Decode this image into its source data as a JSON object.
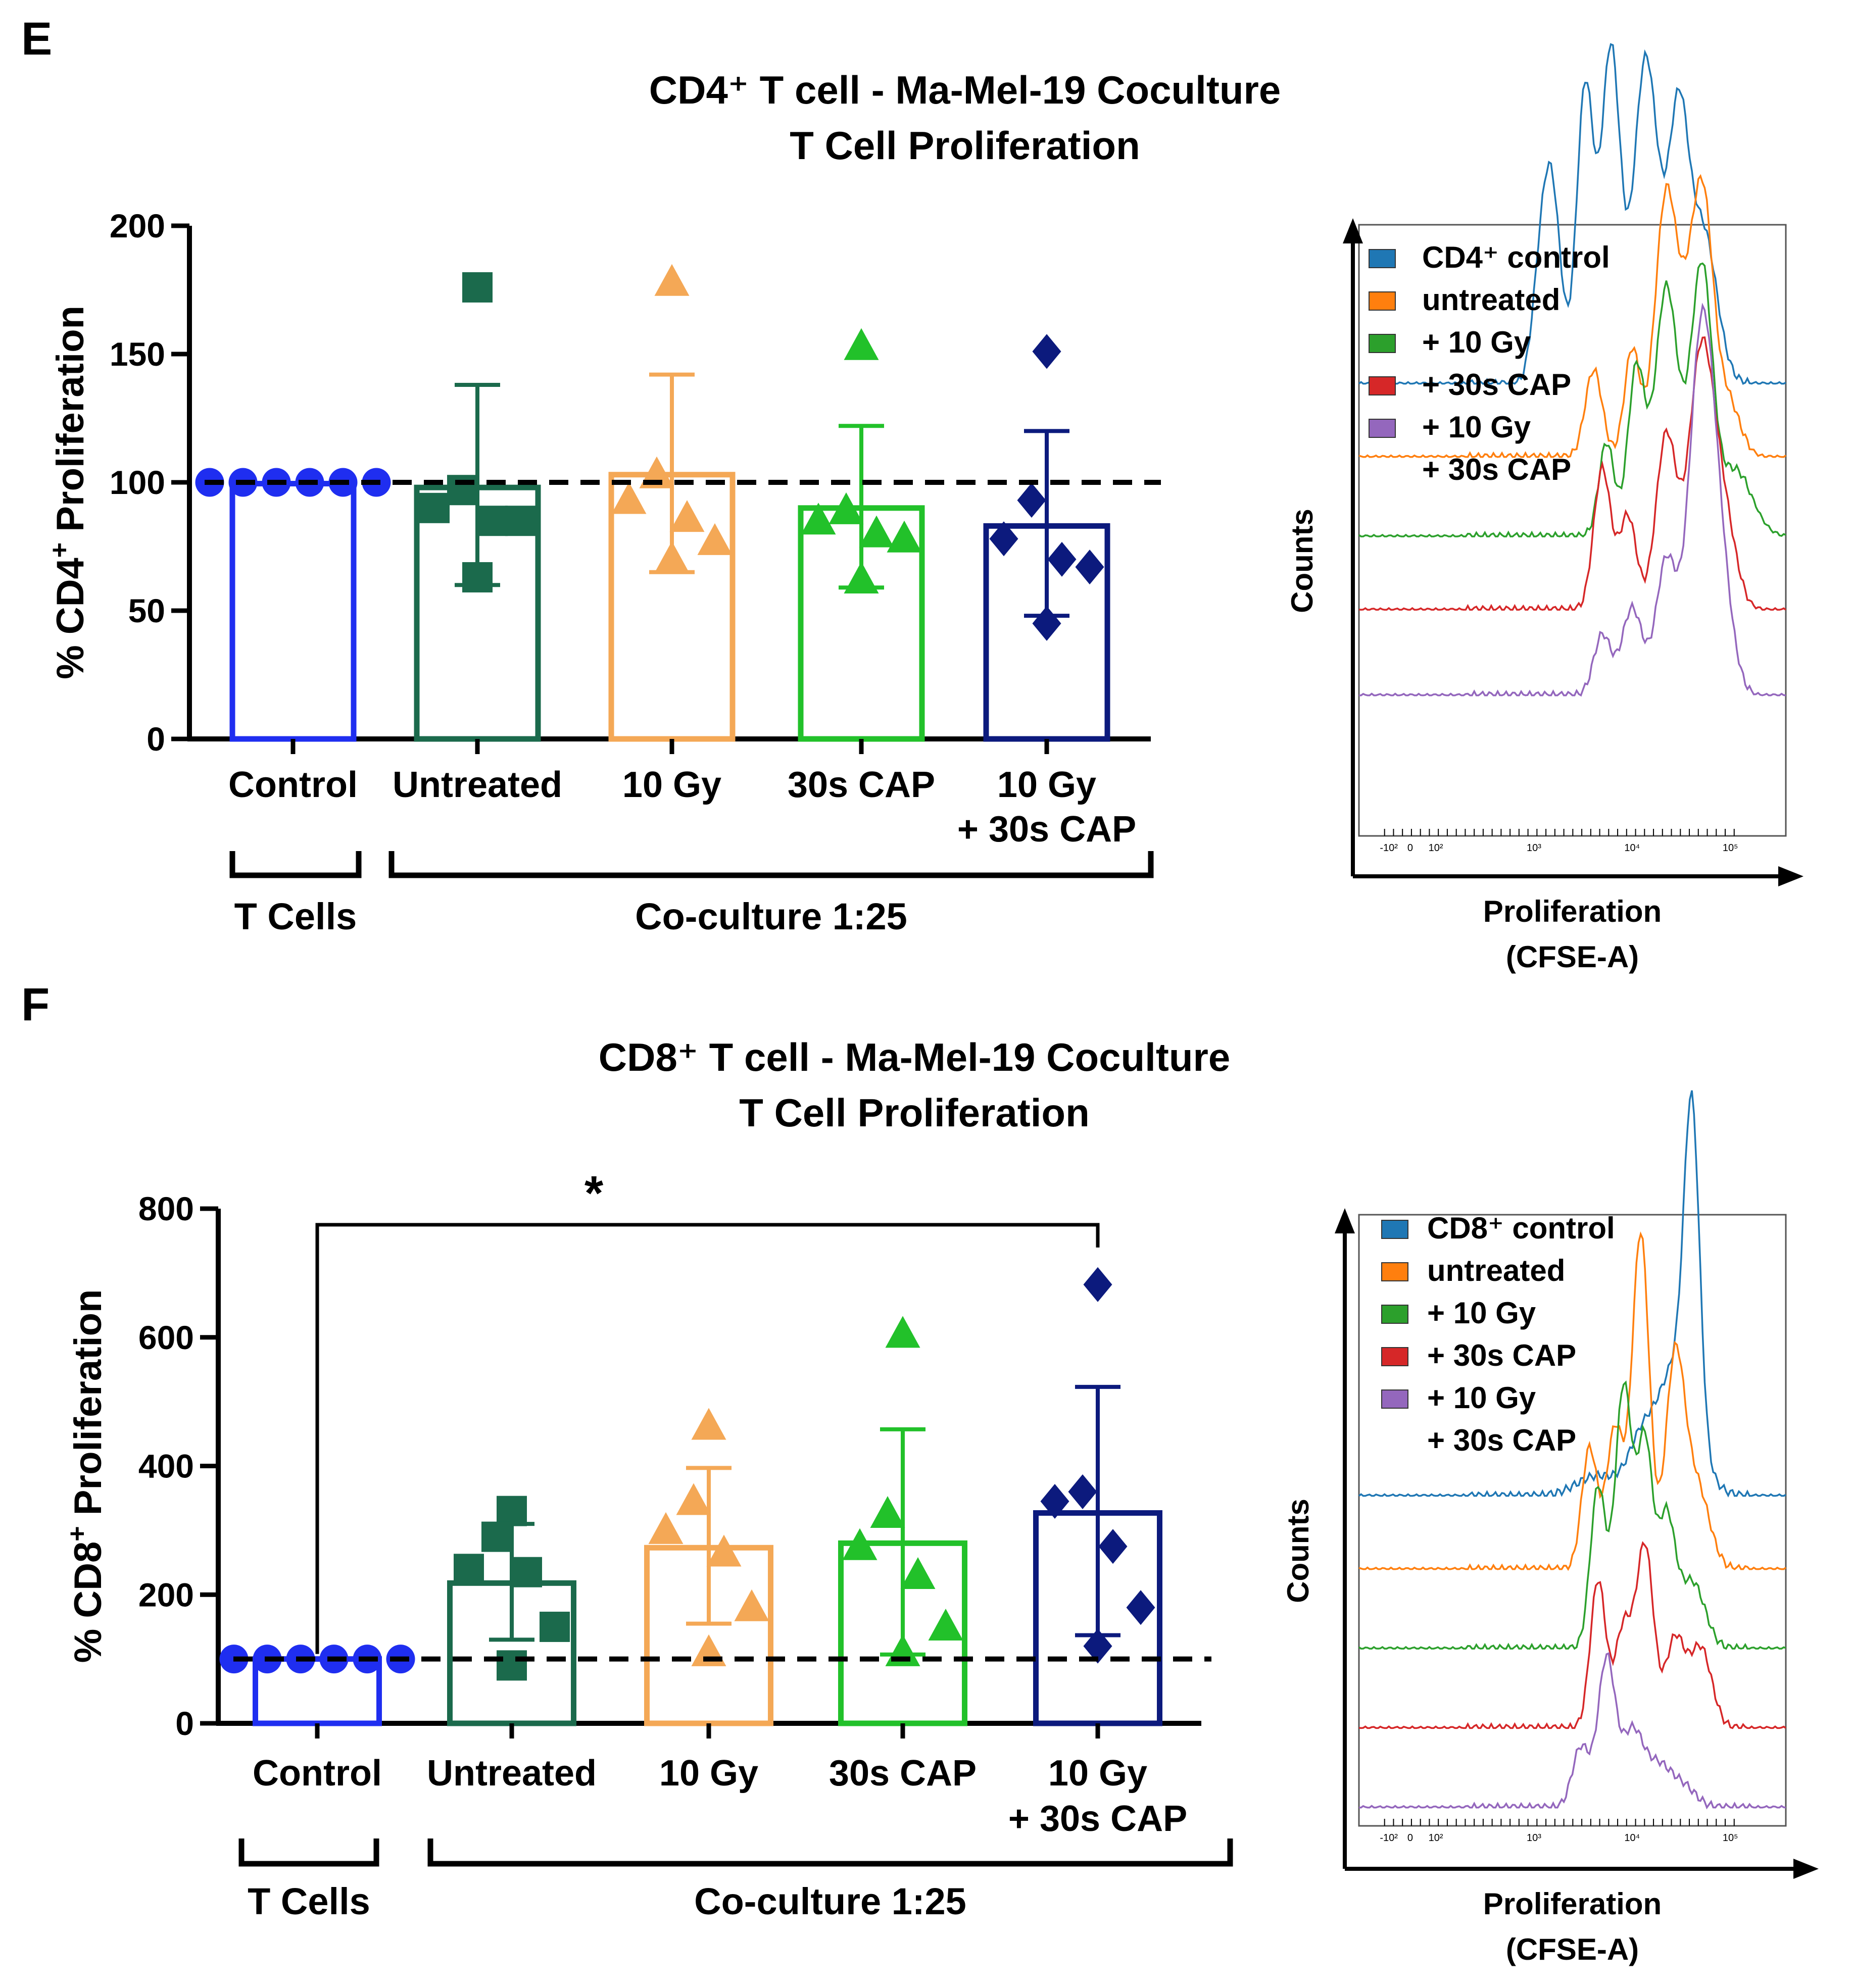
{
  "panels": [
    {
      "letter": "E",
      "title": [
        "CD4⁺ T cell - Ma-Mel-19 Coculture",
        "T Cell Proliferation"
      ],
      "bar": {
        "ylabel_prefix": "% CD4",
        "ylabel_sup": "+",
        "ylabel_suffix": " Proliferation",
        "ylim": [
          0,
          200
        ],
        "yticks": [
          "0",
          "50",
          "100",
          "150",
          "200"
        ],
        "baseline": 100,
        "categories": [
          {
            "lines": [
              "Control"
            ],
            "mean": 99.5,
            "err_low": 99.5,
            "err_high": 99.5,
            "color": "#1f2ef0",
            "marker": "circle",
            "points": [
              100,
              100,
              100,
              100,
              100,
              100
            ]
          },
          {
            "lines": [
              "Untreated"
            ],
            "mean": 98,
            "err_low": 60,
            "err_high": 138,
            "color": "#1b6a4c",
            "marker": "square",
            "points": [
              176,
              97,
              90,
              85,
              85,
              63
            ]
          },
          {
            "lines": [
              "10 Gy"
            ],
            "mean": 103,
            "err_low": 65,
            "err_high": 142,
            "color": "#f4a856",
            "marker": "triangle",
            "points": [
              178,
              103,
              93,
              86,
              77,
              70
            ]
          },
          {
            "lines": [
              "30s CAP"
            ],
            "mean": 90,
            "err_low": 59,
            "err_high": 122,
            "color": "#22c12a",
            "marker": "triangle",
            "points": [
              153,
              89,
              85,
              80,
              78,
              62
            ]
          },
          {
            "lines": [
              "10 Gy",
              "+ 30s CAP"
            ],
            "mean": 83,
            "err_low": 48,
            "err_high": 120,
            "color": "#0c1a7d",
            "marker": "diamond",
            "points": [
              151,
              93,
              78,
              70,
              67,
              45
            ]
          }
        ],
        "groups": [
          {
            "label": "T Cells"
          },
          {
            "label": "Co-culture 1:25"
          }
        ],
        "significance": null
      },
      "flow": {
        "ylabel": "Counts",
        "xlabel": [
          "Proliferation",
          "(CFSE-A)"
        ],
        "xticks": [
          "-10²",
          "0",
          "10²",
          "10³",
          "10⁴",
          "10⁵"
        ],
        "legend": [
          {
            "label": "CD4⁺ control",
            "color": "#1f77b4"
          },
          {
            "label": "untreated",
            "color": "#ff7f0e"
          },
          {
            "label": "+ 10 Gy",
            "color": "#2ca02c"
          },
          {
            "label": "+ 30s CAP",
            "color": "#d62728"
          },
          {
            "label": "+ 10 Gy",
            "extra": "+ 30s CAP",
            "color": "#9467bd"
          }
        ]
      }
    },
    {
      "letter": "F",
      "title": [
        "CD8⁺ T cell - Ma-Mel-19 Coculture",
        "T Cell Proliferation"
      ],
      "bar": {
        "ylabel_prefix": "% CD8",
        "ylabel_sup": "+",
        "ylabel_suffix": " Proliferation",
        "ylim": [
          0,
          800
        ],
        "yticks": [
          "0",
          "200",
          "400",
          "600",
          "800"
        ],
        "baseline": 100,
        "categories": [
          {
            "lines": [
              "Control"
            ],
            "mean": 100,
            "err_low": 100,
            "err_high": 100,
            "color": "#1f2ef0",
            "marker": "circle",
            "points": [
              100,
              100,
              100,
              100,
              100,
              100
            ]
          },
          {
            "lines": [
              "Untreated"
            ],
            "mean": 218,
            "err_low": 130,
            "err_high": 310,
            "color": "#1b6a4c",
            "marker": "square",
            "points": [
              330,
              290,
              240,
              235,
              150,
              90
            ]
          },
          {
            "lines": [
              "10 Gy"
            ],
            "mean": 273,
            "err_low": 155,
            "err_high": 397,
            "color": "#f4a856",
            "marker": "triangle",
            "points": [
              462,
              345,
              300,
              265,
              180,
              110
            ]
          },
          {
            "lines": [
              "30s CAP"
            ],
            "mean": 280,
            "err_low": 107,
            "err_high": 457,
            "color": "#22c12a",
            "marker": "triangle",
            "points": [
              605,
              325,
              275,
              230,
              150,
              110
            ]
          },
          {
            "lines": [
              "10 Gy",
              "+ 30s CAP"
            ],
            "mean": 327,
            "err_low": 137,
            "err_high": 523,
            "color": "#0c1a7d",
            "marker": "diamond",
            "points": [
              682,
              360,
              345,
              275,
              180,
              120
            ]
          }
        ],
        "groups": [
          {
            "label": "T Cells"
          },
          {
            "label": "Co-culture 1:25"
          }
        ],
        "significance": {
          "from": 0,
          "to": 4,
          "label": "*",
          "y": 775
        }
      },
      "flow": {
        "ylabel": "Counts",
        "xlabel": [
          "Proliferation",
          "(CFSE-A)"
        ],
        "xticks": [
          "-10²",
          "0",
          "10²",
          "10³",
          "10⁴",
          "10⁵"
        ],
        "legend": [
          {
            "label": "CD8⁺ control",
            "color": "#1f77b4"
          },
          {
            "label": "untreated",
            "color": "#ff7f0e"
          },
          {
            "label": "+ 10 Gy",
            "color": "#2ca02c"
          },
          {
            "label": "+ 30s CAP",
            "color": "#d62728"
          },
          {
            "label": "+ 10 Gy",
            "extra": "+ 30s CAP",
            "color": "#9467bd"
          }
        ]
      }
    }
  ],
  "chart_data": [
    {
      "type": "bar",
      "title": "CD4⁺ T cell - Ma-Mel-19 Coculture T Cell Proliferation",
      "xlabel": "",
      "ylabel": "% CD4⁺ Proliferation",
      "ylim": [
        0,
        200
      ],
      "categories": [
        "Control",
        "Untreated",
        "10 Gy",
        "30s CAP",
        "10 Gy + 30s CAP"
      ],
      "series": [
        {
          "name": "mean",
          "values": [
            99.5,
            98,
            103,
            90,
            83
          ]
        }
      ],
      "error_bars": [
        [
          99.5,
          99.5
        ],
        [
          60,
          138
        ],
        [
          65,
          142
        ],
        [
          59,
          122
        ],
        [
          48,
          120
        ]
      ],
      "points": [
        [
          100,
          100,
          100,
          100,
          100,
          100
        ],
        [
          176,
          97,
          90,
          85,
          85,
          63
        ],
        [
          178,
          103,
          93,
          86,
          77,
          70
        ],
        [
          153,
          89,
          85,
          80,
          78,
          62
        ],
        [
          151,
          93,
          78,
          70,
          67,
          45
        ]
      ],
      "reference_line": 100
    },
    {
      "type": "bar",
      "title": "CD8⁺ T cell - Ma-Mel-19 Coculture T Cell Proliferation",
      "xlabel": "",
      "ylabel": "% CD8⁺ Proliferation",
      "ylim": [
        0,
        800
      ],
      "categories": [
        "Control",
        "Untreated",
        "10 Gy",
        "30s CAP",
        "10 Gy + 30s CAP"
      ],
      "series": [
        {
          "name": "mean",
          "values": [
            100,
            218,
            273,
            280,
            327
          ]
        }
      ],
      "error_bars": [
        [
          100,
          100
        ],
        [
          130,
          310
        ],
        [
          155,
          397
        ],
        [
          107,
          457
        ],
        [
          137,
          523
        ]
      ],
      "points": [
        [
          100,
          100,
          100,
          100,
          100,
          100
        ],
        [
          330,
          290,
          240,
          235,
          150,
          90
        ],
        [
          462,
          345,
          300,
          265,
          180,
          110
        ],
        [
          605,
          325,
          275,
          230,
          150,
          110
        ],
        [
          682,
          360,
          345,
          275,
          180,
          120
        ]
      ],
      "reference_line": 100,
      "significance": "* Control vs 10 Gy + 30s CAP"
    }
  ]
}
